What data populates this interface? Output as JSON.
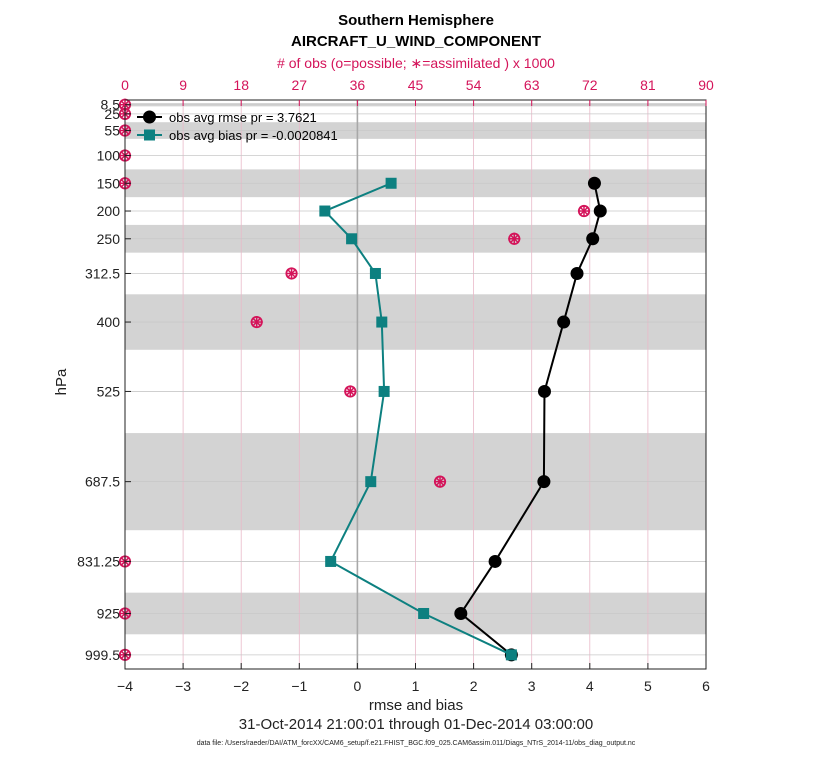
{
  "chart_data": {
    "type": "line",
    "title": "Southern Hemisphere",
    "subtitle": "AIRCRAFT_U_WIND_COMPONENT",
    "top_axis_label": "# of obs (o=possible; ∗=assimilated ) x 1000",
    "xlabel": "rmse and bias",
    "ylabel": "hPa",
    "date_range": "31-Oct-2014 21:00:01 through 01-Dec-2014 03:00:00",
    "data_file": "data file: /Users/raeder/DAI/ATM_forcXX/CAM6_setup/f.e21.FHIST_BGC.f09_025.CAM6assim.011/Diags_NTrS_2014-11/obs_diag_output.nc",
    "xlim": [
      -4,
      6
    ],
    "xticks": [
      -4,
      -3,
      -2,
      -1,
      0,
      1,
      2,
      3,
      4,
      5,
      6
    ],
    "top_xlim": [
      0,
      90
    ],
    "top_xticks": [
      0,
      9,
      18,
      27,
      36,
      45,
      54,
      63,
      72,
      81,
      90
    ],
    "levels": [
      8.5,
      25,
      55,
      100,
      150,
      200,
      250,
      312.5,
      400,
      525,
      687.5,
      831.25,
      925,
      999.5
    ],
    "level_labels": [
      "8.5",
      "25",
      "55",
      "100",
      "150",
      "200",
      "250",
      "312.5",
      "400",
      "525",
      "687.5",
      "831.25",
      "925",
      "999.5"
    ],
    "shaded_bands": [
      [
        5.5,
        11.5
      ],
      [
        40,
        70
      ],
      [
        125,
        175
      ],
      [
        225,
        275
      ],
      [
        350,
        450
      ],
      [
        600,
        775
      ],
      [
        887.5,
        962.5
      ]
    ],
    "series": [
      {
        "name": "obs avg rmse",
        "legend": "obs avg rmse pr = 3.7621",
        "color": "#000000",
        "marker": "circle",
        "levels": [
          150,
          200,
          250,
          312.5,
          400,
          525,
          687.5,
          831.25,
          925,
          999.5
        ],
        "values": [
          4.08,
          4.18,
          4.05,
          3.78,
          3.55,
          3.22,
          3.21,
          2.37,
          1.78,
          2.65
        ]
      },
      {
        "name": "obs avg bias",
        "legend": "obs avg bias pr = -0.0020841",
        "color": "#0d8080",
        "marker": "square",
        "levels": [
          150,
          200,
          250,
          312.5,
          400,
          525,
          687.5,
          831.25,
          925,
          999.5
        ],
        "values": [
          0.58,
          -0.56,
          -0.1,
          0.31,
          0.42,
          0.46,
          0.23,
          -0.46,
          1.14,
          2.65
        ]
      }
    ],
    "obs_counts": {
      "color": "#d4145a",
      "levels": [
        8.5,
        25,
        55,
        100,
        150,
        200,
        250,
        312.5,
        400,
        525,
        687.5,
        831.25,
        925,
        999.5
      ],
      "possible": [
        0,
        0,
        0,
        0,
        0,
        71.1,
        60.3,
        25.8,
        20.4,
        34.9,
        48.8,
        0,
        0,
        0
      ],
      "assimilated": [
        0,
        0,
        0,
        0,
        0,
        71.1,
        60.3,
        25.8,
        20.4,
        34.9,
        48.8,
        0,
        0,
        0
      ]
    }
  }
}
